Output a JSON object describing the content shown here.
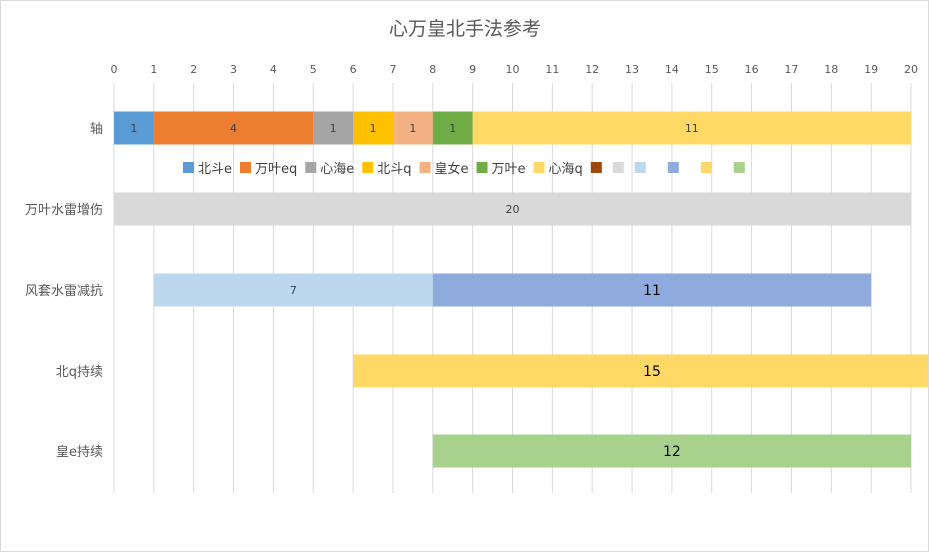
{
  "chart_data": {
    "type": "bar",
    "orientation": "horizontal",
    "stacked": true,
    "title": "心万皇北手法参考",
    "xlim": [
      0,
      20
    ],
    "x_ticks": [
      0,
      1,
      2,
      3,
      4,
      5,
      6,
      7,
      8,
      9,
      10,
      11,
      12,
      13,
      14,
      15,
      16,
      17,
      18,
      19,
      20
    ],
    "x_axis_position": "top",
    "grid": true,
    "legend_position": "below-first-row",
    "categories": [
      "轴",
      "万叶水雷增伤",
      "风套水雷减抗",
      "北q持续",
      "皇e持续"
    ],
    "legend": [
      {
        "label": "北斗e",
        "color": "#5b9bd5"
      },
      {
        "label": "万叶eq",
        "color": "#ed7d31"
      },
      {
        "label": "心海e",
        "color": "#a5a5a5"
      },
      {
        "label": "北斗q",
        "color": "#ffc000"
      },
      {
        "label": "皇女e",
        "color": "#f4b183"
      },
      {
        "label": "万叶e",
        "color": "#70ad47"
      },
      {
        "label": "心海q",
        "color": "#ffd966"
      },
      {
        "label": "",
        "color": "#9e480e"
      },
      {
        "label": "",
        "color": "#d9d9d9"
      },
      {
        "label": "",
        "color": "#bdd7ee"
      },
      {
        "label": "",
        "color": "#8faadc"
      },
      {
        "label": "",
        "color": "#ffd966"
      },
      {
        "label": "",
        "color": "#a9d18e"
      }
    ],
    "rows": [
      {
        "category": "轴",
        "segments": [
          {
            "start": 0,
            "value": 1,
            "label": "1",
            "color": "#5b9bd5"
          },
          {
            "start": 1,
            "value": 4,
            "label": "4",
            "color": "#ed7d31"
          },
          {
            "start": 5,
            "value": 1,
            "label": "1",
            "color": "#a5a5a5"
          },
          {
            "start": 6,
            "value": 1,
            "label": "1",
            "color": "#ffc000"
          },
          {
            "start": 7,
            "value": 1,
            "label": "1",
            "color": "#f4b183"
          },
          {
            "start": 8,
            "value": 1,
            "label": "1",
            "color": "#70ad47"
          },
          {
            "start": 9,
            "value": 11,
            "label": "11",
            "color": "#ffd966"
          }
        ]
      },
      {
        "category": "万叶水雷增伤",
        "segments": [
          {
            "start": 0,
            "value": 20,
            "label": "20",
            "color": "#d9d9d9"
          }
        ]
      },
      {
        "category": "风套水雷减抗",
        "segments": [
          {
            "start": 1,
            "value": 7,
            "label": "7",
            "color": "#bdd7ee"
          },
          {
            "start": 8,
            "value": 11,
            "label": "11",
            "color": "#8faadc"
          }
        ]
      },
      {
        "category": "北q持续",
        "segments": [
          {
            "start": 6,
            "value": 15,
            "label": "15",
            "color": "#ffd966"
          }
        ]
      },
      {
        "category": "皇e持续",
        "segments": [
          {
            "start": 8,
            "value": 12,
            "label": "12",
            "color": "#a9d18e"
          }
        ]
      }
    ]
  }
}
